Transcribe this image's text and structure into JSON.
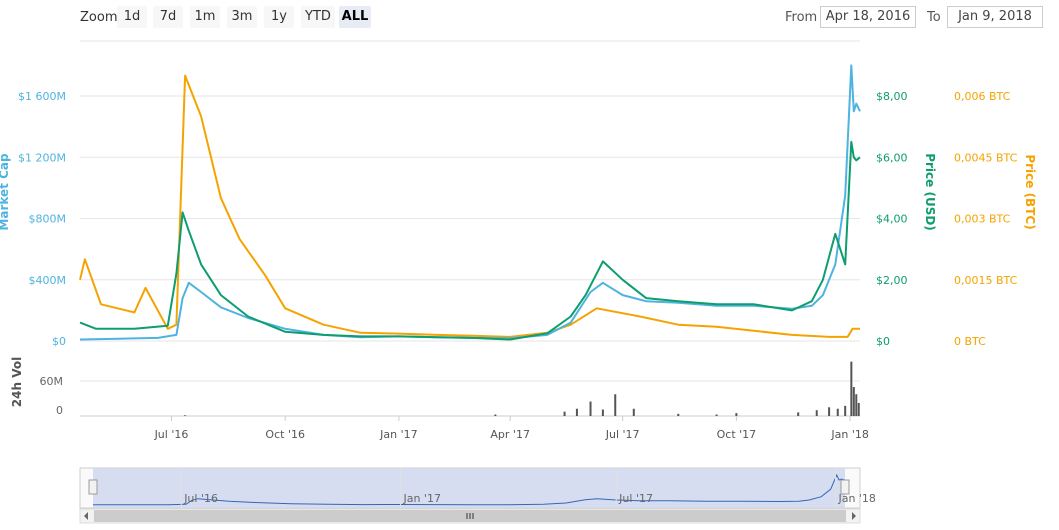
{
  "zoom": {
    "label": "Zoom",
    "buttons": [
      "1d",
      "7d",
      "1m",
      "3m",
      "1y",
      "YTD",
      "ALL"
    ],
    "active": "ALL"
  },
  "range": {
    "from_label": "From",
    "from_value": "Apr 18, 2016",
    "to_label": "To",
    "to_value": "Jan 9, 2018"
  },
  "colors": {
    "market_cap": "#4fb3e0",
    "price_usd": "#0e9d6f",
    "price_btc": "#f5a300",
    "volume": "#555555",
    "navigator_fill": "#cdd6ee",
    "navigator_line": "#3366bb"
  },
  "chart_data": {
    "type": "line",
    "x_axis": {
      "ticks": [
        "Jul '16",
        "Oct '16",
        "Jan '17",
        "Apr '17",
        "Jul '17",
        "Oct '17",
        "Jan '18"
      ],
      "range": [
        "2016-04-18",
        "2018-01-09"
      ]
    },
    "y_axes": {
      "market_cap": {
        "label": "Market Cap",
        "ticks": [
          "$0",
          "$400M",
          "$800M",
          "$1 200M",
          "$1 600M"
        ],
        "range": [
          0,
          1600
        ]
      },
      "price_usd": {
        "label": "Price (USD)",
        "ticks": [
          "$0",
          "$2,00",
          "$4,00",
          "$6,00",
          "$8,00"
        ],
        "range": [
          0,
          8
        ]
      },
      "price_btc": {
        "label": "Price (BTC)",
        "ticks": [
          "0 BTC",
          "0,0015 BTC",
          "0,003 BTC",
          "0,0045 BTC",
          "0,006 BTC"
        ],
        "range": [
          0,
          0.006
        ]
      },
      "volume": {
        "label": "24h Vol",
        "ticks": [
          "0",
          "60M"
        ],
        "range": [
          0,
          60
        ]
      }
    },
    "series": [
      {
        "key": "market_cap",
        "name": "Market Cap",
        "x": [
          "2016-04-18",
          "2016-05-20",
          "2016-06-20",
          "2016-07-05",
          "2016-07-10",
          "2016-07-15",
          "2016-07-25",
          "2016-08-10",
          "2016-09-01",
          "2016-10-01",
          "2016-11-01",
          "2016-12-01",
          "2017-01-01",
          "2017-02-01",
          "2017-03-01",
          "2017-04-01",
          "2017-05-01",
          "2017-05-20",
          "2017-06-05",
          "2017-06-15",
          "2017-07-01",
          "2017-07-20",
          "2017-08-15",
          "2017-09-15",
          "2017-10-15",
          "2017-11-15",
          "2017-12-01",
          "2017-12-10",
          "2017-12-20",
          "2017-12-28",
          "2018-01-02",
          "2018-01-04",
          "2018-01-06",
          "2018-01-09"
        ],
        "values": [
          10,
          15,
          20,
          40,
          280,
          380,
          320,
          220,
          150,
          80,
          40,
          25,
          30,
          25,
          20,
          18,
          40,
          120,
          320,
          380,
          300,
          260,
          250,
          230,
          230,
          210,
          230,
          300,
          500,
          950,
          1800,
          1500,
          1550,
          1500
        ]
      },
      {
        "key": "price_usd",
        "name": "Price (USD)",
        "x": [
          "2016-04-18",
          "2016-05-01",
          "2016-06-01",
          "2016-06-28",
          "2016-07-05",
          "2016-07-10",
          "2016-07-15",
          "2016-07-25",
          "2016-08-10",
          "2016-09-01",
          "2016-10-01",
          "2016-11-01",
          "2016-12-01",
          "2017-01-01",
          "2017-02-01",
          "2017-03-01",
          "2017-04-01",
          "2017-05-01",
          "2017-05-20",
          "2017-06-01",
          "2017-06-15",
          "2017-07-01",
          "2017-07-20",
          "2017-08-15",
          "2017-09-15",
          "2017-10-15",
          "2017-11-15",
          "2017-12-01",
          "2017-12-10",
          "2017-12-20",
          "2017-12-28",
          "2018-01-02",
          "2018-01-04",
          "2018-01-06",
          "2018-01-09"
        ],
        "values": [
          0.6,
          0.4,
          0.4,
          0.5,
          2.2,
          4.2,
          3.6,
          2.5,
          1.5,
          0.8,
          0.3,
          0.2,
          0.15,
          0.15,
          0.12,
          0.1,
          0.05,
          0.25,
          0.8,
          1.5,
          2.6,
          2.0,
          1.4,
          1.3,
          1.2,
          1.2,
          1.0,
          1.3,
          2.0,
          3.5,
          2.5,
          6.5,
          6.0,
          5.9,
          6.0
        ]
      },
      {
        "key": "price_btc",
        "name": "Price (BTC)",
        "x": [
          "2016-04-18",
          "2016-04-22",
          "2016-05-05",
          "2016-06-01",
          "2016-06-10",
          "2016-06-28",
          "2016-07-05",
          "2016-07-12",
          "2016-07-25",
          "2016-08-10",
          "2016-08-25",
          "2016-09-15",
          "2016-10-01",
          "2016-11-01",
          "2016-12-01",
          "2017-01-01",
          "2017-02-01",
          "2017-03-01",
          "2017-04-01",
          "2017-05-01",
          "2017-05-20",
          "2017-06-10",
          "2017-07-15",
          "2017-08-15",
          "2017-09-15",
          "2017-10-15",
          "2017-11-15",
          "2017-12-15",
          "2017-12-30",
          "2018-01-03",
          "2018-01-09"
        ],
        "values": [
          0.0015,
          0.002,
          0.0009,
          0.0007,
          0.0013,
          0.0003,
          0.0004,
          0.0065,
          0.0055,
          0.0035,
          0.0025,
          0.0016,
          0.0008,
          0.0004,
          0.0002,
          0.00018,
          0.00015,
          0.00013,
          0.0001,
          0.0002,
          0.0004,
          0.0008,
          0.0006,
          0.0004,
          0.00035,
          0.00025,
          0.00015,
          0.0001,
          0.0001,
          0.0003,
          0.0003
        ]
      }
    ],
    "volume": {
      "x": [
        "2016-07-12",
        "2017-03-20",
        "2017-05-15",
        "2017-05-25",
        "2017-06-05",
        "2017-06-15",
        "2017-06-25",
        "2017-07-10",
        "2017-08-15",
        "2017-09-15",
        "2017-10-01",
        "2017-11-20",
        "2017-12-05",
        "2017-12-15",
        "2017-12-22",
        "2017-12-28",
        "2018-01-02",
        "2018-01-04",
        "2018-01-06",
        "2018-01-08"
      ],
      "values": [
        1,
        2,
        6,
        10,
        20,
        9,
        30,
        10,
        3,
        2,
        4,
        5,
        8,
        12,
        10,
        14,
        75,
        40,
        30,
        18
      ]
    },
    "navigator": {
      "ticks": [
        "Jul '16",
        "Jan '17",
        "Jul '17",
        "Jan '18"
      ]
    }
  }
}
